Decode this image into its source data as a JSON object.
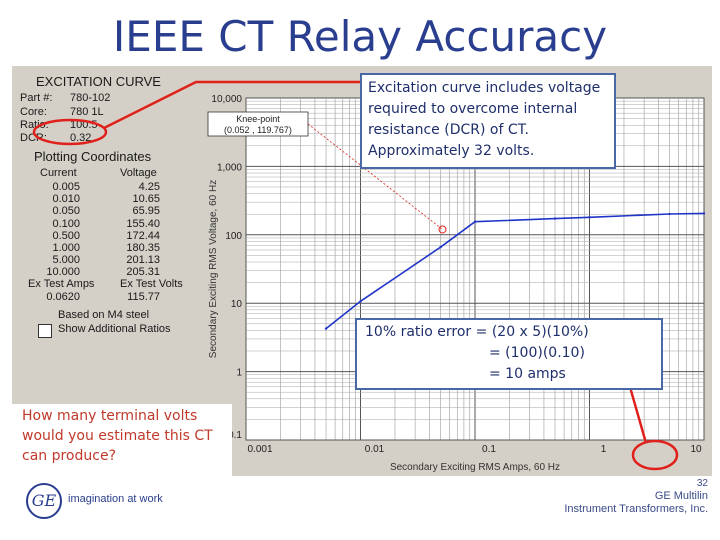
{
  "slide": {
    "title": "IEEE CT Relay Accuracy",
    "page_number": "32",
    "company": "GE Multilin",
    "company_sub": "Instrument Transformers, Inc.",
    "tagline": "imagination at work",
    "logo_text": "GE"
  },
  "panel": {
    "heading": "EXCITATION CURVE",
    "fields": [
      {
        "label": "Part #:",
        "value": "780-102"
      },
      {
        "label": "Core:",
        "value": "780 1L"
      },
      {
        "label": "Ratio:",
        "value": "100:5"
      },
      {
        "label": "DCR:",
        "value": "0.32"
      }
    ],
    "plotting_heading": "Plotting Coordinates",
    "col_current": "Current",
    "col_voltage": "Voltage",
    "rows": [
      {
        "current": "0.005",
        "voltage": "4.25"
      },
      {
        "current": "0.010",
        "voltage": "10.65"
      },
      {
        "current": "0.050",
        "voltage": "65.95"
      },
      {
        "current": "0.100",
        "voltage": "155.40"
      },
      {
        "current": "0.500",
        "voltage": "172.44"
      },
      {
        "current": "1.000",
        "voltage": "180.35"
      },
      {
        "current": "5.000",
        "voltage": "201.13"
      },
      {
        "current": "10.000",
        "voltage": "205.31"
      }
    ],
    "test_amps_label": "Ex Test Amps",
    "test_volts_label": "Ex Test Volts",
    "test_amps_value": "0.0620",
    "test_volts_value": "115.77",
    "steel_note": "Based on M4 steel",
    "show_ratios_label": "Show Additional Ratios"
  },
  "chart_data": {
    "type": "line",
    "x_scale": "log",
    "y_scale": "log",
    "xlim": [
      0.001,
      10
    ],
    "ylim": [
      0.1,
      10000
    ],
    "xlabel": "Secondary Exciting RMS Amps, 60 Hz",
    "ylabel": "Secondary Exciting RMS Voltage, 60 Hz",
    "x_tick_labels": [
      "0.001",
      "0.01",
      "0.1",
      "1",
      "10"
    ],
    "y_tick_labels": [
      "0.1",
      "1",
      "10",
      "100",
      "1,000",
      "10,000"
    ],
    "series": [
      {
        "color": "#1f35c8",
        "x": [
          0.005,
          0.01,
          0.05,
          0.1,
          0.5,
          1,
          5,
          10
        ],
        "y": [
          4.25,
          10.65,
          65.95,
          155.4,
          172.44,
          180.35,
          201.13,
          205.31
        ]
      }
    ],
    "knee_point": {
      "label": "Knee-point",
      "value_text": "(0.052 , 119.767)",
      "x": 0.052,
      "y": 119.767
    }
  },
  "callouts": {
    "dcr_note": "Excitation curve includes voltage required to overcome internal resistance (DCR) of CT. Approximately 32 volts.",
    "ratio_line1": "10% ratio error = (20 x 5)(10%)",
    "ratio_line2": "= (100)(0.10)",
    "ratio_line3": "= 10 amps",
    "question": "How many terminal volts would you estimate this CT can produce?"
  },
  "colors": {
    "title": "#2a3e8f",
    "highlight": "#e0201b",
    "curve": "#1f35c8"
  }
}
